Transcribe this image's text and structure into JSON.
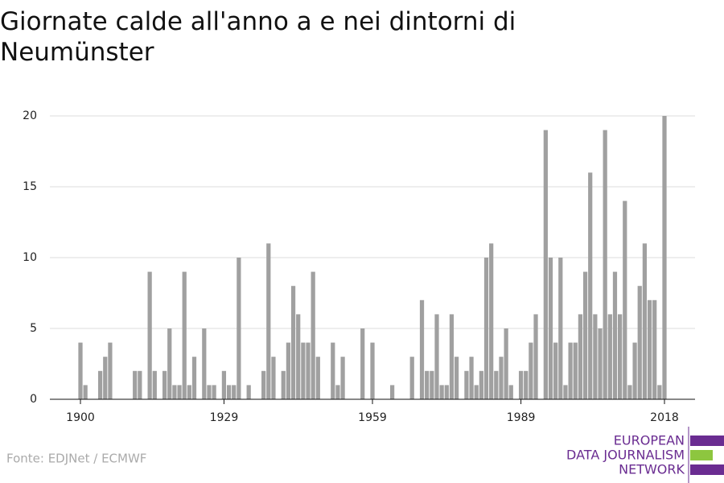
{
  "chart_data": {
    "type": "bar",
    "title": "Giornate calde all'anno a e nei dintorni di Neumünster",
    "source": "Fonte: EDJNet / ECMWF",
    "logo": [
      "EUROPEAN",
      "DATA JOURNALISM",
      "NETWORK"
    ],
    "color": "#a0a0a0",
    "x": [
      1900,
      1901,
      1902,
      1903,
      1904,
      1905,
      1906,
      1907,
      1908,
      1909,
      1910,
      1911,
      1912,
      1913,
      1914,
      1915,
      1916,
      1917,
      1918,
      1919,
      1920,
      1921,
      1922,
      1923,
      1924,
      1925,
      1926,
      1927,
      1928,
      1929,
      1930,
      1931,
      1932,
      1933,
      1934,
      1935,
      1936,
      1937,
      1938,
      1939,
      1940,
      1941,
      1942,
      1943,
      1944,
      1945,
      1946,
      1947,
      1948,
      1949,
      1950,
      1951,
      1952,
      1953,
      1954,
      1955,
      1956,
      1957,
      1958,
      1959,
      1960,
      1961,
      1962,
      1963,
      1964,
      1965,
      1966,
      1967,
      1968,
      1969,
      1970,
      1971,
      1972,
      1973,
      1974,
      1975,
      1976,
      1977,
      1978,
      1979,
      1980,
      1981,
      1982,
      1983,
      1984,
      1985,
      1986,
      1987,
      1988,
      1989,
      1990,
      1991,
      1992,
      1993,
      1994,
      1995,
      1996,
      1997,
      1998,
      1999,
      2000,
      2001,
      2002,
      2003,
      2004,
      2005,
      2006,
      2007,
      2008,
      2009,
      2010,
      2011,
      2012,
      2013,
      2014,
      2015,
      2016,
      2017,
      2018
    ],
    "values": [
      4,
      1,
      0,
      0,
      2,
      3,
      4,
      0,
      0,
      0,
      0,
      2,
      2,
      0,
      9,
      2,
      0,
      2,
      5,
      1,
      1,
      9,
      1,
      3,
      0,
      5,
      1,
      1,
      0,
      2,
      1,
      1,
      10,
      0,
      1,
      0,
      0,
      2,
      11,
      3,
      0,
      2,
      4,
      8,
      6,
      4,
      4,
      9,
      3,
      0,
      0,
      4,
      1,
      3,
      0,
      0,
      0,
      5,
      0,
      4,
      0,
      0,
      0,
      1,
      0,
      0,
      0,
      3,
      0,
      7,
      2,
      2,
      6,
      1,
      1,
      6,
      3,
      0,
      2,
      3,
      1,
      2,
      10,
      11,
      2,
      3,
      5,
      1,
      0,
      2,
      2,
      4,
      6,
      0,
      19,
      10,
      4,
      10,
      1,
      4,
      4,
      6,
      9,
      16,
      6,
      5,
      19,
      6,
      9,
      6,
      14,
      1,
      4,
      8,
      11,
      7,
      7,
      1,
      20
    ],
    "xlim": [
      1900,
      2018
    ],
    "xticks": [
      1900,
      1929,
      1959,
      1989,
      2018
    ],
    "ylim": [
      0,
      20
    ],
    "yticks": [
      0,
      5,
      10,
      15,
      20
    ],
    "grid": true
  }
}
